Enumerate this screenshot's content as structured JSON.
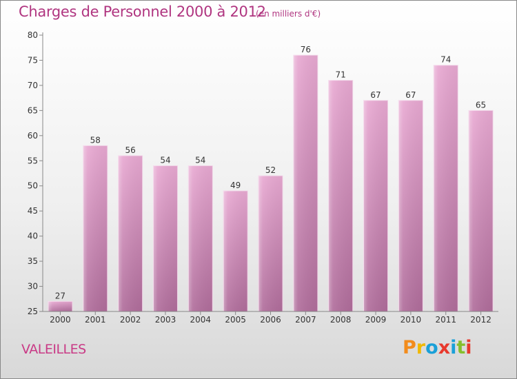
{
  "header": {
    "title": "Charges de Personnel 2000 à 2012",
    "subtitle": "(en milliers d'€)"
  },
  "footer": {
    "place": "VALEILLES",
    "logo_text": "Proxiti",
    "logo_colors": [
      "#f28c1c",
      "#f0b800",
      "#1aa0d8",
      "#e8392d",
      "#1aa0d8",
      "#86bf2d",
      "#e8392d"
    ]
  },
  "colors": {
    "title": "#b03580",
    "bar_top": "#e8a9d2",
    "bar_bottom": "#b06d9b",
    "axis": "#888888"
  },
  "chart_data": {
    "type": "bar",
    "categories": [
      "2000",
      "2001",
      "2002",
      "2003",
      "2004",
      "2005",
      "2006",
      "2007",
      "2008",
      "2009",
      "2010",
      "2011",
      "2012"
    ],
    "values": [
      27,
      58,
      56,
      54,
      54,
      49,
      52,
      76,
      71,
      67,
      67,
      74,
      65
    ],
    "title": "Charges de Personnel 2000 à 2012",
    "subtitle": "(en milliers d'€)",
    "ylim": [
      25,
      80
    ],
    "yticks": [
      25,
      30,
      35,
      40,
      45,
      50,
      55,
      60,
      65,
      70,
      75,
      80
    ],
    "grid": false
  }
}
